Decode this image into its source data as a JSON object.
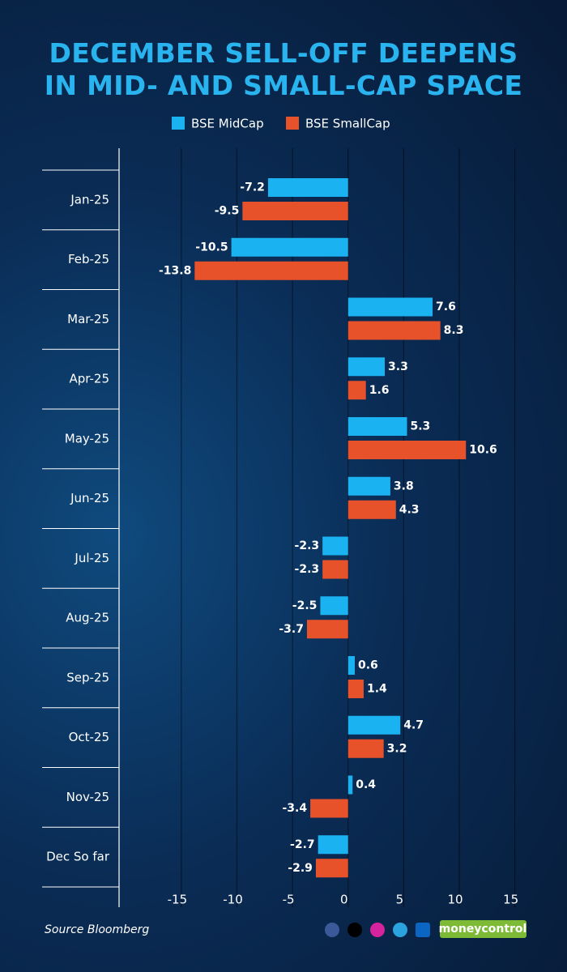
{
  "chart_data": {
    "type": "bar",
    "orientation": "horizontal",
    "title": "DECEMBER SELL-OFF DEEPENS IN MID- AND SMALL-CAP SPACE",
    "categories": [
      "Jan-25",
      "Feb-25",
      "Mar-25",
      "Apr-25",
      "May-25",
      "Jun-25",
      "Jul-25",
      "Aug-25",
      "Sep-25",
      "Oct-25",
      "Nov-25",
      "Dec So far"
    ],
    "series": [
      {
        "name": "BSE MidCap",
        "color": "#1ab2f0",
        "values": [
          -7.2,
          -10.5,
          7.6,
          3.3,
          5.3,
          3.8,
          -2.3,
          -2.5,
          0.6,
          4.7,
          0.4,
          -2.7
        ]
      },
      {
        "name": "BSE SmallCap",
        "color": "#e8522a",
        "values": [
          -9.5,
          -13.8,
          8.3,
          1.6,
          10.6,
          4.3,
          -2.3,
          -3.7,
          1.4,
          3.2,
          -3.4,
          -2.9
        ]
      }
    ],
    "xlim": [
      -20.6,
      15.1
    ],
    "xticks": [
      -15,
      -10,
      -5,
      0,
      5,
      10,
      15
    ],
    "grid": true,
    "source": "Source Bloomberg",
    "brand": "moneycontrol"
  }
}
